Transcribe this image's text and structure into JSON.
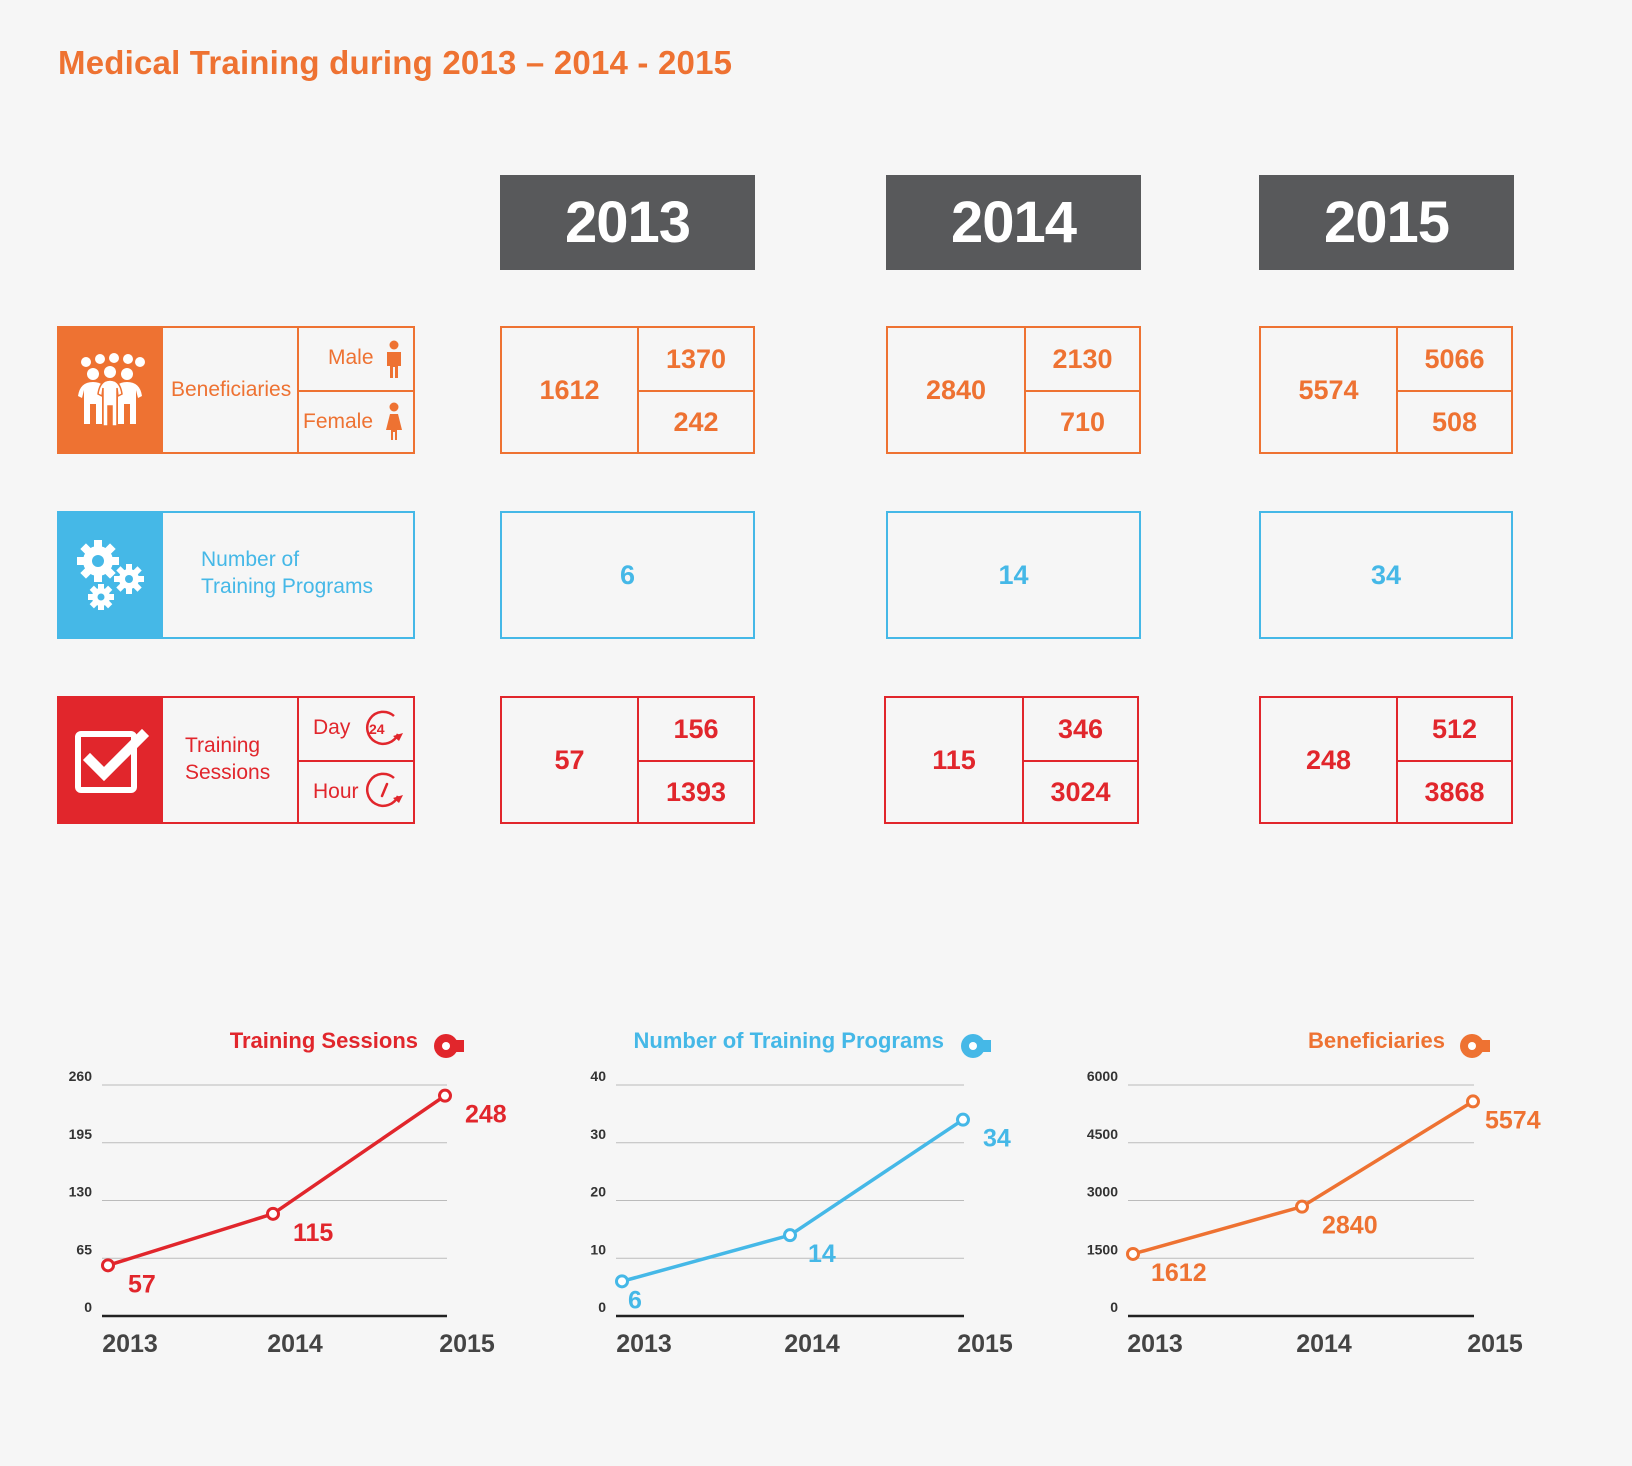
{
  "title": "Medical Training during 2013 – 2014 - 2015",
  "years": [
    "2013",
    "2014",
    "2015"
  ],
  "rows": {
    "beneficiaries": {
      "label": "Beneficiaries",
      "sub1": "Male",
      "sub2": "Female",
      "values": [
        {
          "total": "1612",
          "sub1": "1370",
          "sub2": "242"
        },
        {
          "total": "2840",
          "sub1": "2130",
          "sub2": "710"
        },
        {
          "total": "5574",
          "sub1": "5066",
          "sub2": "508"
        }
      ]
    },
    "programs": {
      "label_line1": "Number of",
      "label_line2": "Training Programs",
      "values": [
        "6",
        "14",
        "34"
      ]
    },
    "sessions": {
      "label_line1": "Training",
      "label_line2": "Sessions",
      "sub1": "Day",
      "sub2": "Hour",
      "day_icon_text": "24",
      "values": [
        {
          "total": "57",
          "sub1": "156",
          "sub2": "1393"
        },
        {
          "total": "115",
          "sub1": "346",
          "sub2": "3024"
        },
        {
          "total": "248",
          "sub1": "512",
          "sub2": "3868"
        }
      ]
    }
  },
  "colors": {
    "orange": "#ee7232",
    "blue": "#45b8e7",
    "red": "#e1262c",
    "dark": "#58595b"
  },
  "chart_data": [
    {
      "type": "line",
      "title": "Training Sessions",
      "categories": [
        "2013",
        "2014",
        "2015"
      ],
      "values": [
        57,
        115,
        248
      ],
      "yticks": [
        0,
        65,
        130,
        195,
        260
      ],
      "ylim": [
        0,
        260
      ],
      "color": "#e1262c"
    },
    {
      "type": "line",
      "title": "Number of Training Programs",
      "categories": [
        "2013",
        "2014",
        "2015"
      ],
      "values": [
        6,
        14,
        34
      ],
      "yticks": [
        0,
        10,
        20,
        30,
        40
      ],
      "ylim": [
        0,
        40
      ],
      "color": "#45b8e7"
    },
    {
      "type": "line",
      "title": "Beneficiaries",
      "categories": [
        "2013",
        "2014",
        "2015"
      ],
      "values": [
        1612,
        2840,
        5574
      ],
      "yticks": [
        0,
        1500,
        3000,
        4500,
        6000
      ],
      "ylim": [
        0,
        6000
      ],
      "color": "#ee7232"
    }
  ]
}
